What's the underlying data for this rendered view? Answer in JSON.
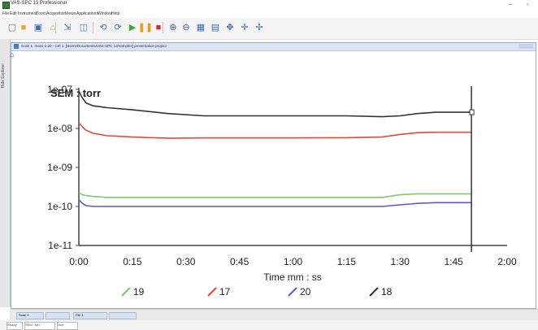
{
  "app": {
    "title": "VAS-SPC 13 Professional",
    "minimize": "–",
    "maximize": "▫"
  },
  "menu": [
    "File",
    "Edit",
    "Instrument",
    "Zoom",
    "Acquisition",
    "Views",
    "Applications",
    "Window",
    "Help"
  ],
  "toolbar_icons": [
    {
      "name": "new-file-icon",
      "glyph": "▢",
      "color": "#7a7a7a"
    },
    {
      "name": "open-folder-icon",
      "glyph": "■",
      "color": "#e0a830"
    },
    {
      "name": "save-icon",
      "glyph": "▣",
      "color": "#3a6ab0"
    },
    {
      "name": "print-icon",
      "glyph": "⌂",
      "color": "#e6a020"
    },
    {
      "name": "export-icon",
      "glyph": "⇲",
      "color": "#4a7ab8"
    },
    {
      "name": "window-icon",
      "glyph": "◫",
      "color": "#4a7ab8"
    },
    {
      "name": "sync-icon",
      "glyph": "⟲",
      "color": "#4a7ab8"
    },
    {
      "name": "refresh-icon",
      "glyph": "⟳",
      "color": "#4a7ab8"
    },
    {
      "name": "play-icon",
      "glyph": "▶",
      "color": "#3aaa3a"
    },
    {
      "name": "pause-icon",
      "glyph": "❚❚",
      "color": "#e6a020"
    },
    {
      "name": "stop-icon",
      "glyph": "■",
      "color": "#d03030"
    },
    {
      "name": "zoom-in-icon",
      "glyph": "⊕",
      "color": "#3a6ab0"
    },
    {
      "name": "zoom-out-icon",
      "glyph": "⊖",
      "color": "#3a6ab0"
    },
    {
      "name": "grid-icon",
      "glyph": "▦",
      "color": "#3a6ab0"
    },
    {
      "name": "layout-icon",
      "glyph": "▤",
      "color": "#3a6ab0"
    },
    {
      "name": "move-icon",
      "glyph": "✥",
      "color": "#3a6ab0"
    },
    {
      "name": "pan-icon",
      "glyph": "✛",
      "color": "#3a6ab0"
    },
    {
      "name": "cursor-icon",
      "glyph": "✢",
      "color": "#3a6ab0"
    }
  ],
  "document": {
    "title": "Scan 1: mass 1-20 - Ctrl 1: [Users/Documents/VAS-SPC 13/samples] presentation project",
    "side_label": "Hide Explorer"
  },
  "chart_data": {
    "type": "line",
    "title": "SEM : torr",
    "xlabel": "Time mm : ss",
    "ylabel": "",
    "x_ticks": [
      "0:00",
      "0:15",
      "0:30",
      "0:45",
      "1:00",
      "1:15",
      "1:30",
      "1:45",
      "2:00"
    ],
    "y_ticks": [
      "1e-07",
      "1e-08",
      "1e-09",
      "1e-10",
      "1e-11"
    ],
    "xlim": [
      0,
      120
    ],
    "ylim": [
      1e-11,
      1e-07
    ],
    "y_scale": "log",
    "grid": false,
    "legend_position": "bottom",
    "cursor_x": 110,
    "series": [
      {
        "name": "18",
        "color": "#333333",
        "x": [
          0,
          1,
          2,
          4,
          8,
          15,
          25,
          35,
          45,
          60,
          75,
          85,
          90,
          95,
          100,
          110
        ],
        "y": [
          9e-08,
          6e-08,
          4.5e-08,
          3.8e-08,
          3.4e-08,
          3e-08,
          2.4e-08,
          2.1e-08,
          2.1e-08,
          2.1e-08,
          2.1e-08,
          2e-08,
          2.1e-08,
          2.4e-08,
          2.6e-08,
          2.6e-08
        ]
      },
      {
        "name": "17",
        "color": "#e8473c",
        "x": [
          0,
          1,
          2,
          4,
          8,
          15,
          25,
          35,
          45,
          60,
          75,
          85,
          90,
          95,
          100,
          110
        ],
        "y": [
          1.4e-08,
          1.1e-08,
          9e-09,
          7.5e-09,
          6.5e-09,
          6e-09,
          5.6e-09,
          5.7e-09,
          5.7e-09,
          5.7e-09,
          5.8e-09,
          6e-09,
          7e-09,
          7.8e-09,
          8e-09,
          8e-09
        ]
      },
      {
        "name": "19",
        "color": "#7dc66a",
        "x": [
          0,
          1,
          2,
          4,
          8,
          15,
          25,
          35,
          45,
          60,
          75,
          85,
          90,
          95,
          100,
          110
        ],
        "y": [
          2.3e-10,
          2e-10,
          1.9e-10,
          1.8e-10,
          1.7e-10,
          1.7e-10,
          1.7e-10,
          1.7e-10,
          1.7e-10,
          1.7e-10,
          1.7e-10,
          1.7e-10,
          2e-10,
          2.1e-10,
          2.1e-10,
          2.1e-10
        ]
      },
      {
        "name": "20",
        "color": "#5a5ad0",
        "x": [
          0,
          1,
          2,
          4,
          8,
          15,
          25,
          35,
          45,
          60,
          75,
          85,
          90,
          95,
          100,
          110
        ],
        "y": [
          1.5e-10,
          1.2e-10,
          1.05e-10,
          1e-10,
          1e-10,
          1e-10,
          1e-10,
          1e-10,
          1e-10,
          1e-10,
          1e-10,
          1e-10,
          1.1e-10,
          1.2e-10,
          1.25e-10,
          1.25e-10
        ]
      }
    ],
    "legend": [
      {
        "label": "19",
        "color": "#7dc66a"
      },
      {
        "label": "17",
        "color": "#e8473c"
      },
      {
        "label": "20",
        "color": "#5a5ad0"
      },
      {
        "label": "18",
        "color": "#333333"
      }
    ]
  },
  "bottom_tabs": [
    "Scan 1",
    "Ctrl 1"
  ],
  "status_tabs": [
    "Ready",
    "SEM : torr",
    "Live"
  ]
}
